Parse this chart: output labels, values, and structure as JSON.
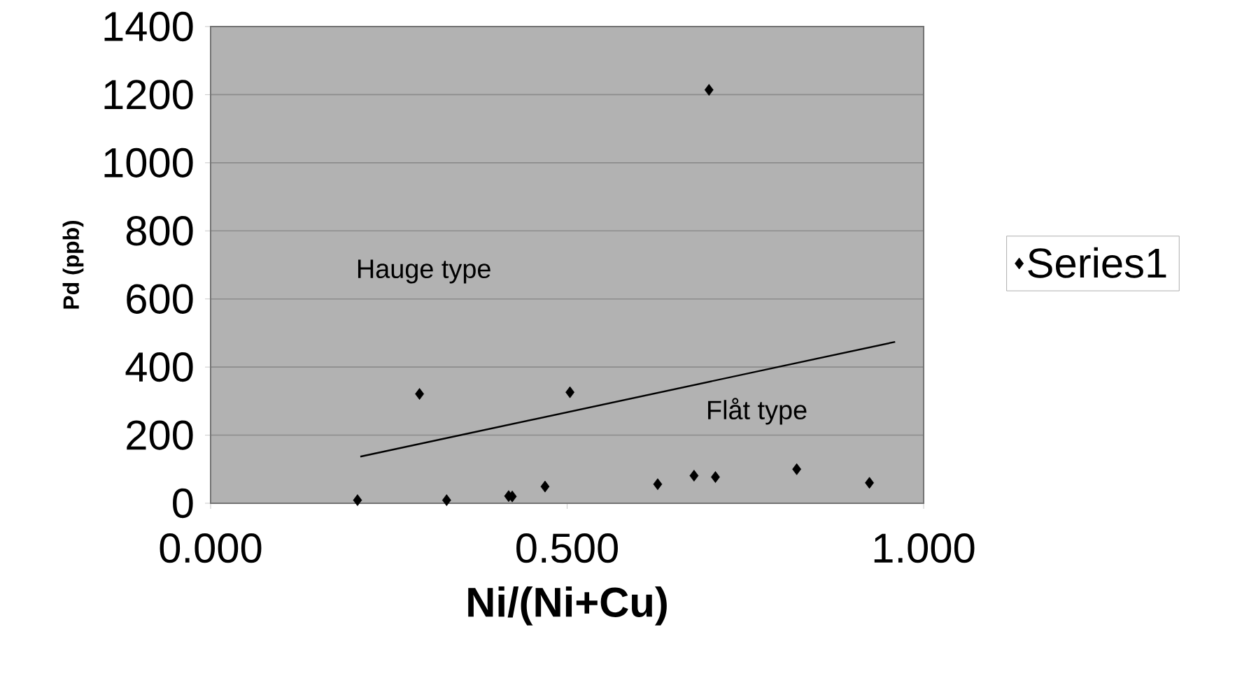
{
  "chart_data": {
    "type": "scatter",
    "xlabel": "Ni/(Ni+Cu)",
    "ylabel": "Pd (ppb)",
    "xlim": [
      0,
      1
    ],
    "ylim": [
      0,
      1400
    ],
    "xticks": [
      {
        "value": 0,
        "label": "0.000"
      },
      {
        "value": 0.5,
        "label": "0.500"
      },
      {
        "value": 1,
        "label": "1.000"
      }
    ],
    "yticks": [
      0,
      200,
      400,
      600,
      800,
      1000,
      1200,
      1400
    ],
    "grid": "y",
    "legend": "right",
    "marker": "diamond",
    "series": [
      {
        "name": "Series1",
        "color": "#000000",
        "x": [
          0.206,
          0.293,
          0.331,
          0.418,
          0.423,
          0.469,
          0.504,
          0.627,
          0.678,
          0.699,
          0.708,
          0.822,
          0.924
        ],
        "values": [
          9,
          321,
          9,
          21,
          20,
          49,
          326,
          56,
          81,
          1214,
          77,
          100,
          60
        ]
      },
      {
        "type": "line",
        "color": "#000000",
        "marker": "none",
        "x": [
          0.21,
          0.96
        ],
        "values": [
          137,
          474
        ]
      }
    ],
    "annotations": [
      "Hauge type",
      "Flåt type"
    ]
  }
}
